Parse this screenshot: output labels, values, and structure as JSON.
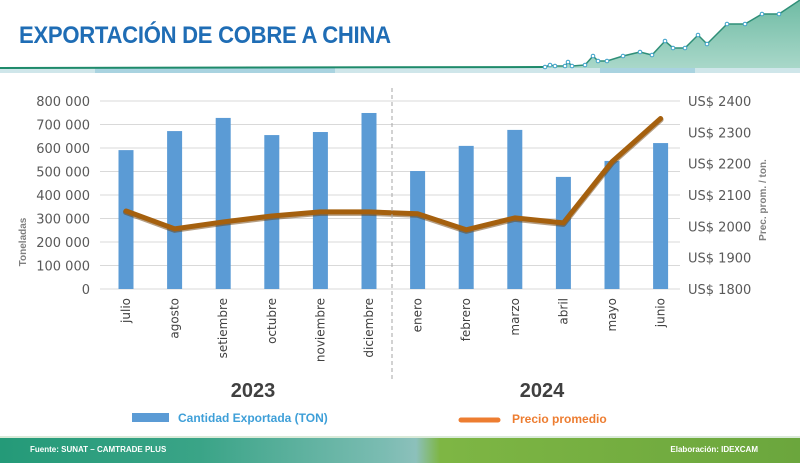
{
  "header": {
    "title": "EXPORTACIÓN DE COBRE A CHINA"
  },
  "colors": {
    "title": "#1f6db5",
    "bar": "#5b9bd5",
    "line": "#a5600e",
    "line_legend": "#ed7d31",
    "legend_bar_text": "#3e9fd8",
    "grid": "#d9d9d9"
  },
  "chart_data": {
    "type": "bar",
    "combo": "bar+line (dual axis)",
    "title": "EXPORTACIÓN DE COBRE A CHINA",
    "categories": [
      "julio",
      "agosto",
      "setiembre",
      "octubre",
      "noviembre",
      "diciembre",
      "enero",
      "febrero",
      "marzo",
      "abril",
      "mayo",
      "junio"
    ],
    "groups": [
      {
        "label": "2023",
        "categories": [
          "julio",
          "agosto",
          "setiembre",
          "octubre",
          "noviembre",
          "diciembre"
        ]
      },
      {
        "label": "2024",
        "categories": [
          "enero",
          "febrero",
          "marzo",
          "abril",
          "mayo",
          "junio"
        ]
      }
    ],
    "series": [
      {
        "name": "Cantidad Exportada (TON)",
        "type": "bar",
        "axis": "left",
        "values": [
          591000,
          672000,
          728000,
          655000,
          668000,
          749000,
          502000,
          609000,
          677000,
          477000,
          545000,
          621000
        ]
      },
      {
        "name": "Precio promedio",
        "type": "line",
        "axis": "right",
        "values": [
          2049,
          1992,
          2014,
          2033,
          2046,
          2046,
          2040,
          1989,
          2027,
          2011,
          2206,
          2344
        ]
      }
    ],
    "left_axis": {
      "label": "Toneladas",
      "ylim": [
        0,
        800000
      ],
      "ticks": [
        0,
        100000,
        200000,
        300000,
        400000,
        500000,
        600000,
        700000,
        800000
      ],
      "tick_labels": [
        "0",
        "100 000",
        "200 000",
        "300 000",
        "400 000",
        "500 000",
        "600 000",
        "700 000",
        "800 000"
      ]
    },
    "right_axis": {
      "label": "Prec. prom. / ton.",
      "ylim": [
        1800,
        2400
      ],
      "ticks": [
        1800,
        1900,
        2000,
        2100,
        2200,
        2300,
        2400
      ],
      "tick_labels": [
        "US$ 1800",
        "US$ 1900",
        "US$ 2000",
        "US$ 2100",
        "US$ 2200",
        "US$ 2300",
        "US$ 2400"
      ]
    },
    "grid": true,
    "legend": {
      "position": "bottom",
      "items": [
        "Cantidad Exportada (TON)",
        "Precio promedio"
      ]
    }
  },
  "footer": {
    "source": "Fuente: SUNAT – CAMTRADE PLUS",
    "credit": "Elaboración: IDEXCAM"
  }
}
